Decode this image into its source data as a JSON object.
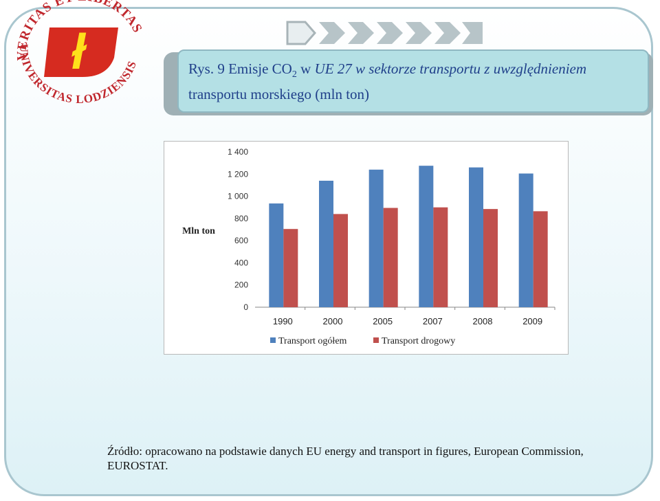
{
  "logo": {
    "arc_text_top": "VERITAS ET LIBERTAS",
    "arc_text_bottom": "UNIVERSITAS LODZIENSIS",
    "emblem_letter": "ł",
    "colors": {
      "text": "#c0272d",
      "shield": "#d62b20",
      "letter": "#ffe01b"
    }
  },
  "nav": {
    "icon": "chevron-arrows-icon",
    "color": "#a8b4b8"
  },
  "title": {
    "prefix": "Rys. 9 Emisje ",
    "co": "CO",
    "co_sub": "2",
    "mid": " w ",
    "italic_part": "UE 27 w sektorze transportu z uwzględnieniem",
    "line2": "transportu morskiego (mln ton)"
  },
  "chart_data": {
    "type": "bar",
    "categories": [
      "1990",
      "2000",
      "2005",
      "2007",
      "2008",
      "2009"
    ],
    "series": [
      {
        "name": "Transport ogółem",
        "values": [
          935,
          1140,
          1240,
          1275,
          1260,
          1205
        ],
        "color": "#4f81bd"
      },
      {
        "name": "Transport drogowy",
        "values": [
          705,
          840,
          895,
          900,
          885,
          865
        ],
        "color": "#c0504d"
      }
    ],
    "ylabel": "Mln ton",
    "ylim": [
      0,
      1400
    ],
    "yticks": [
      0,
      200,
      400,
      600,
      800,
      1000,
      1200,
      1400
    ],
    "ytick_labels": [
      "0",
      "200",
      "400",
      "600",
      "800",
      "1 000",
      "1 200",
      "1 400"
    ],
    "grid": false,
    "legend": "bottom"
  },
  "source": {
    "text": "Źródło: opracowano na podstawie danych EU energy and transport in figures, European Commission, EUROSTAT."
  }
}
